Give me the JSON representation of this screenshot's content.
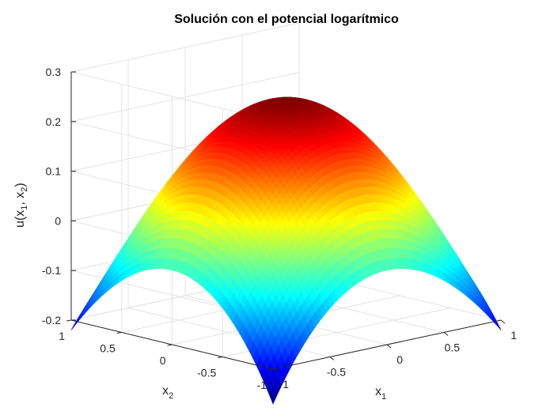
{
  "chart_data": {
    "type": "surface",
    "title": "Solución con el potencial logarítmico",
    "xlabel": {
      "base": "x",
      "sub": "1"
    },
    "ylabel": {
      "base": "x",
      "sub": "2"
    },
    "zlabel": {
      "pre": "u(x",
      "sub1": "1",
      "mid": ", x",
      "sub2": "2",
      "post": ")"
    },
    "xlim": [
      -1,
      1
    ],
    "ylim": [
      -1,
      1
    ],
    "zlim": [
      -0.2,
      0.3
    ],
    "x_ticks": [
      "-1",
      "-0.5",
      "0",
      "0.5",
      "1"
    ],
    "y_ticks": [
      "-1",
      "-0.5",
      "0",
      "0.5",
      "1"
    ],
    "z_ticks": [
      "-0.2",
      "-0.1",
      "0",
      "0.1",
      "0.2",
      "0.3"
    ],
    "x_tick_values": [
      -1,
      -0.5,
      0,
      0.5,
      1
    ],
    "y_tick_values": [
      -1,
      -0.5,
      0,
      0.5,
      1
    ],
    "z_tick_values": [
      -0.2,
      -0.1,
      0,
      0.1,
      0.2,
      0.3
    ],
    "grid": true,
    "colormap": "jet",
    "surface_samples": {
      "center": {
        "x1": 0,
        "x2": 0,
        "u": 0.245
      },
      "edge_midpoint": {
        "x1": 1,
        "x2": 0,
        "u": -0.05
      },
      "corner": {
        "x1": 1,
        "x2": 1,
        "u": -0.17
      },
      "corner_front": {
        "x1": -1,
        "x2": -1,
        "u": -0.27
      }
    }
  }
}
